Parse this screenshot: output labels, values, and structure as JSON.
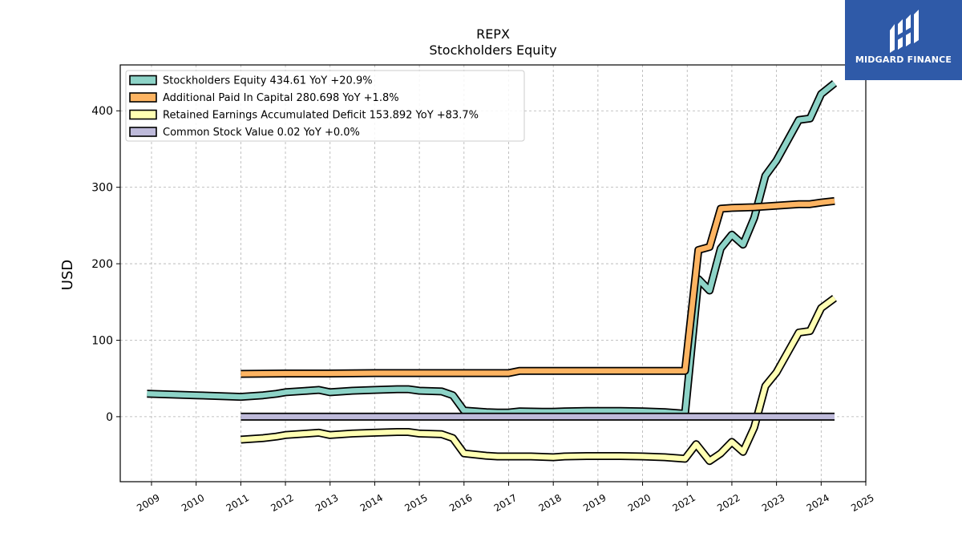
{
  "brand": {
    "name": "MIDGARD FINANCE",
    "accent": "#2f5aa8"
  },
  "chart_data": {
    "type": "line",
    "title": "REPX",
    "subtitle": "Stockholders  Equity",
    "xlabel": "",
    "ylabel": "USD",
    "xlim": [
      2008.3,
      2025.0
    ],
    "ylim": [
      -85,
      460
    ],
    "yticks": [
      0,
      100,
      200,
      300,
      400
    ],
    "xticks": [
      "2009",
      "2010",
      "2011",
      "2012",
      "2013",
      "2014",
      "2015",
      "2016",
      "2017",
      "2018",
      "2019",
      "2020",
      "2021",
      "2022",
      "2023",
      "2024",
      "2025"
    ],
    "grid": true,
    "legend_position": "top-left",
    "series": [
      {
        "name": "Stockholders Equity",
        "legend": "Stockholders Equity  434.61 YoY +20.9%",
        "color": "#8dd3c7",
        "points": [
          [
            2008.9,
            30
          ],
          [
            2010.0,
            28
          ],
          [
            2011.0,
            26
          ],
          [
            2011.5,
            28
          ],
          [
            2011.8,
            30
          ],
          [
            2012.0,
            32
          ],
          [
            2012.5,
            34
          ],
          [
            2012.75,
            35
          ],
          [
            2013.0,
            32
          ],
          [
            2013.5,
            34
          ],
          [
            2014.0,
            35
          ],
          [
            2014.5,
            36
          ],
          [
            2014.75,
            36
          ],
          [
            2015.0,
            34
          ],
          [
            2015.5,
            33
          ],
          [
            2015.75,
            28
          ],
          [
            2016.0,
            8
          ],
          [
            2016.5,
            6
          ],
          [
            2016.75,
            5.5
          ],
          [
            2017.0,
            5.5
          ],
          [
            2017.25,
            7
          ],
          [
            2017.75,
            6.5
          ],
          [
            2018.0,
            6.5
          ],
          [
            2018.25,
            7
          ],
          [
            2018.75,
            7.5
          ],
          [
            2019.0,
            7.5
          ],
          [
            2019.5,
            7.5
          ],
          [
            2020.0,
            7
          ],
          [
            2020.5,
            6
          ],
          [
            2020.95,
            4
          ],
          [
            2021.25,
            180
          ],
          [
            2021.5,
            165
          ],
          [
            2021.75,
            220
          ],
          [
            2022.0,
            238
          ],
          [
            2022.25,
            225
          ],
          [
            2022.5,
            260
          ],
          [
            2022.75,
            315
          ],
          [
            2023.0,
            335
          ],
          [
            2023.5,
            388
          ],
          [
            2023.75,
            390
          ],
          [
            2024.0,
            422
          ],
          [
            2024.3,
            436
          ]
        ]
      },
      {
        "name": "Additional Paid In Capital",
        "legend": "Additional Paid In Capital  280.698 YoY +1.8%",
        "color": "#fdb462",
        "points": [
          [
            2011.0,
            56
          ],
          [
            2012.0,
            56.5
          ],
          [
            2013.0,
            56.5
          ],
          [
            2014.0,
            57
          ],
          [
            2015.0,
            57
          ],
          [
            2016.0,
            57
          ],
          [
            2016.75,
            57
          ],
          [
            2017.0,
            57
          ],
          [
            2017.25,
            60
          ],
          [
            2017.75,
            60
          ],
          [
            2018.0,
            60
          ],
          [
            2019.0,
            60
          ],
          [
            2020.0,
            60
          ],
          [
            2020.95,
            60
          ],
          [
            2021.25,
            218
          ],
          [
            2021.5,
            222
          ],
          [
            2021.75,
            272
          ],
          [
            2022.0,
            273
          ],
          [
            2022.5,
            274
          ],
          [
            2023.0,
            276
          ],
          [
            2023.5,
            278
          ],
          [
            2023.75,
            278
          ],
          [
            2024.0,
            280
          ],
          [
            2024.3,
            282
          ]
        ]
      },
      {
        "name": "Retained Earnings Accumulated Deficit",
        "legend": "Retained Earnings Accumulated Deficit  153.892 YoY +83.7%",
        "color": "#ffffb3",
        "points": [
          [
            2011.0,
            -30
          ],
          [
            2011.5,
            -28
          ],
          [
            2011.8,
            -26
          ],
          [
            2012.0,
            -24
          ],
          [
            2012.5,
            -22
          ],
          [
            2012.75,
            -21
          ],
          [
            2013.0,
            -24
          ],
          [
            2013.5,
            -22
          ],
          [
            2014.0,
            -21
          ],
          [
            2014.5,
            -20
          ],
          [
            2014.75,
            -20
          ],
          [
            2015.0,
            -22
          ],
          [
            2015.5,
            -23
          ],
          [
            2015.75,
            -28
          ],
          [
            2016.0,
            -48
          ],
          [
            2016.5,
            -51
          ],
          [
            2016.75,
            -52
          ],
          [
            2017.0,
            -52
          ],
          [
            2017.5,
            -52
          ],
          [
            2018.0,
            -53
          ],
          [
            2018.25,
            -52
          ],
          [
            2018.75,
            -51.5
          ],
          [
            2019.0,
            -51.5
          ],
          [
            2019.5,
            -51.5
          ],
          [
            2020.0,
            -52
          ],
          [
            2020.5,
            -53
          ],
          [
            2020.95,
            -55
          ],
          [
            2021.2,
            -36
          ],
          [
            2021.5,
            -58
          ],
          [
            2021.75,
            -48
          ],
          [
            2022.0,
            -33
          ],
          [
            2022.25,
            -46
          ],
          [
            2022.5,
            -14
          ],
          [
            2022.75,
            40
          ],
          [
            2023.0,
            58
          ],
          [
            2023.5,
            110
          ],
          [
            2023.75,
            112
          ],
          [
            2024.0,
            142
          ],
          [
            2024.3,
            155
          ]
        ]
      },
      {
        "name": "Common Stock Value",
        "legend": "Common Stock Value  0.02 YoY +0.0%",
        "color": "#bebada",
        "points": [
          [
            2011.0,
            0
          ],
          [
            2024.3,
            0
          ]
        ]
      }
    ]
  }
}
